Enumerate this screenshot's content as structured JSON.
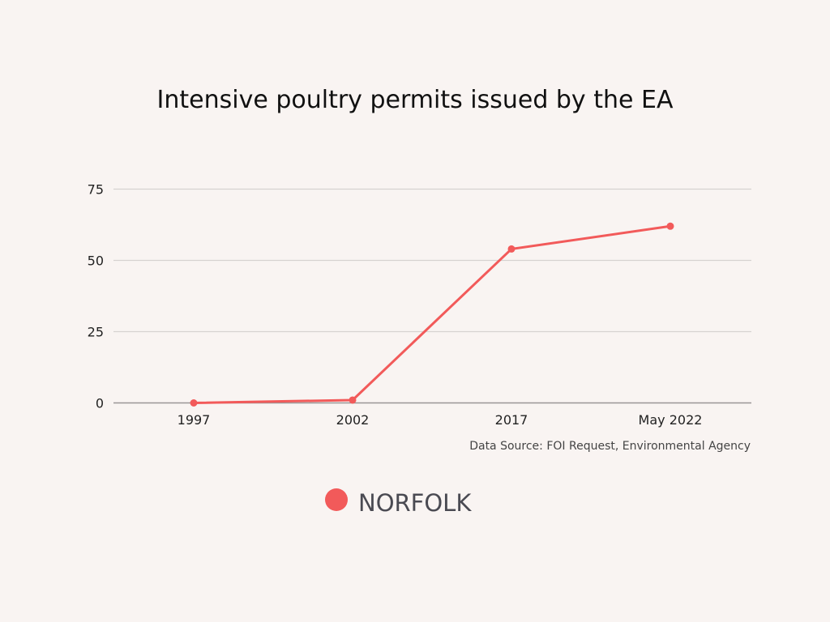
{
  "chart_data": {
    "type": "line",
    "title": "Intensive poultry permits issued by the EA",
    "categories": [
      "1997",
      "2002",
      "2017",
      "May 2022"
    ],
    "series": [
      {
        "name": "NORFOLK",
        "values": [
          0,
          1,
          54,
          62
        ]
      }
    ],
    "ylim": [
      0,
      75
    ],
    "yticks": [
      0,
      25,
      50,
      75
    ],
    "grid": true,
    "legend_position": "bottom-center",
    "source": "Data Source: FOI Request, Environmental Agency",
    "colors": {
      "series": "#f25a5a",
      "grid": "#d6d2d0",
      "axis": "#9a9696"
    }
  }
}
